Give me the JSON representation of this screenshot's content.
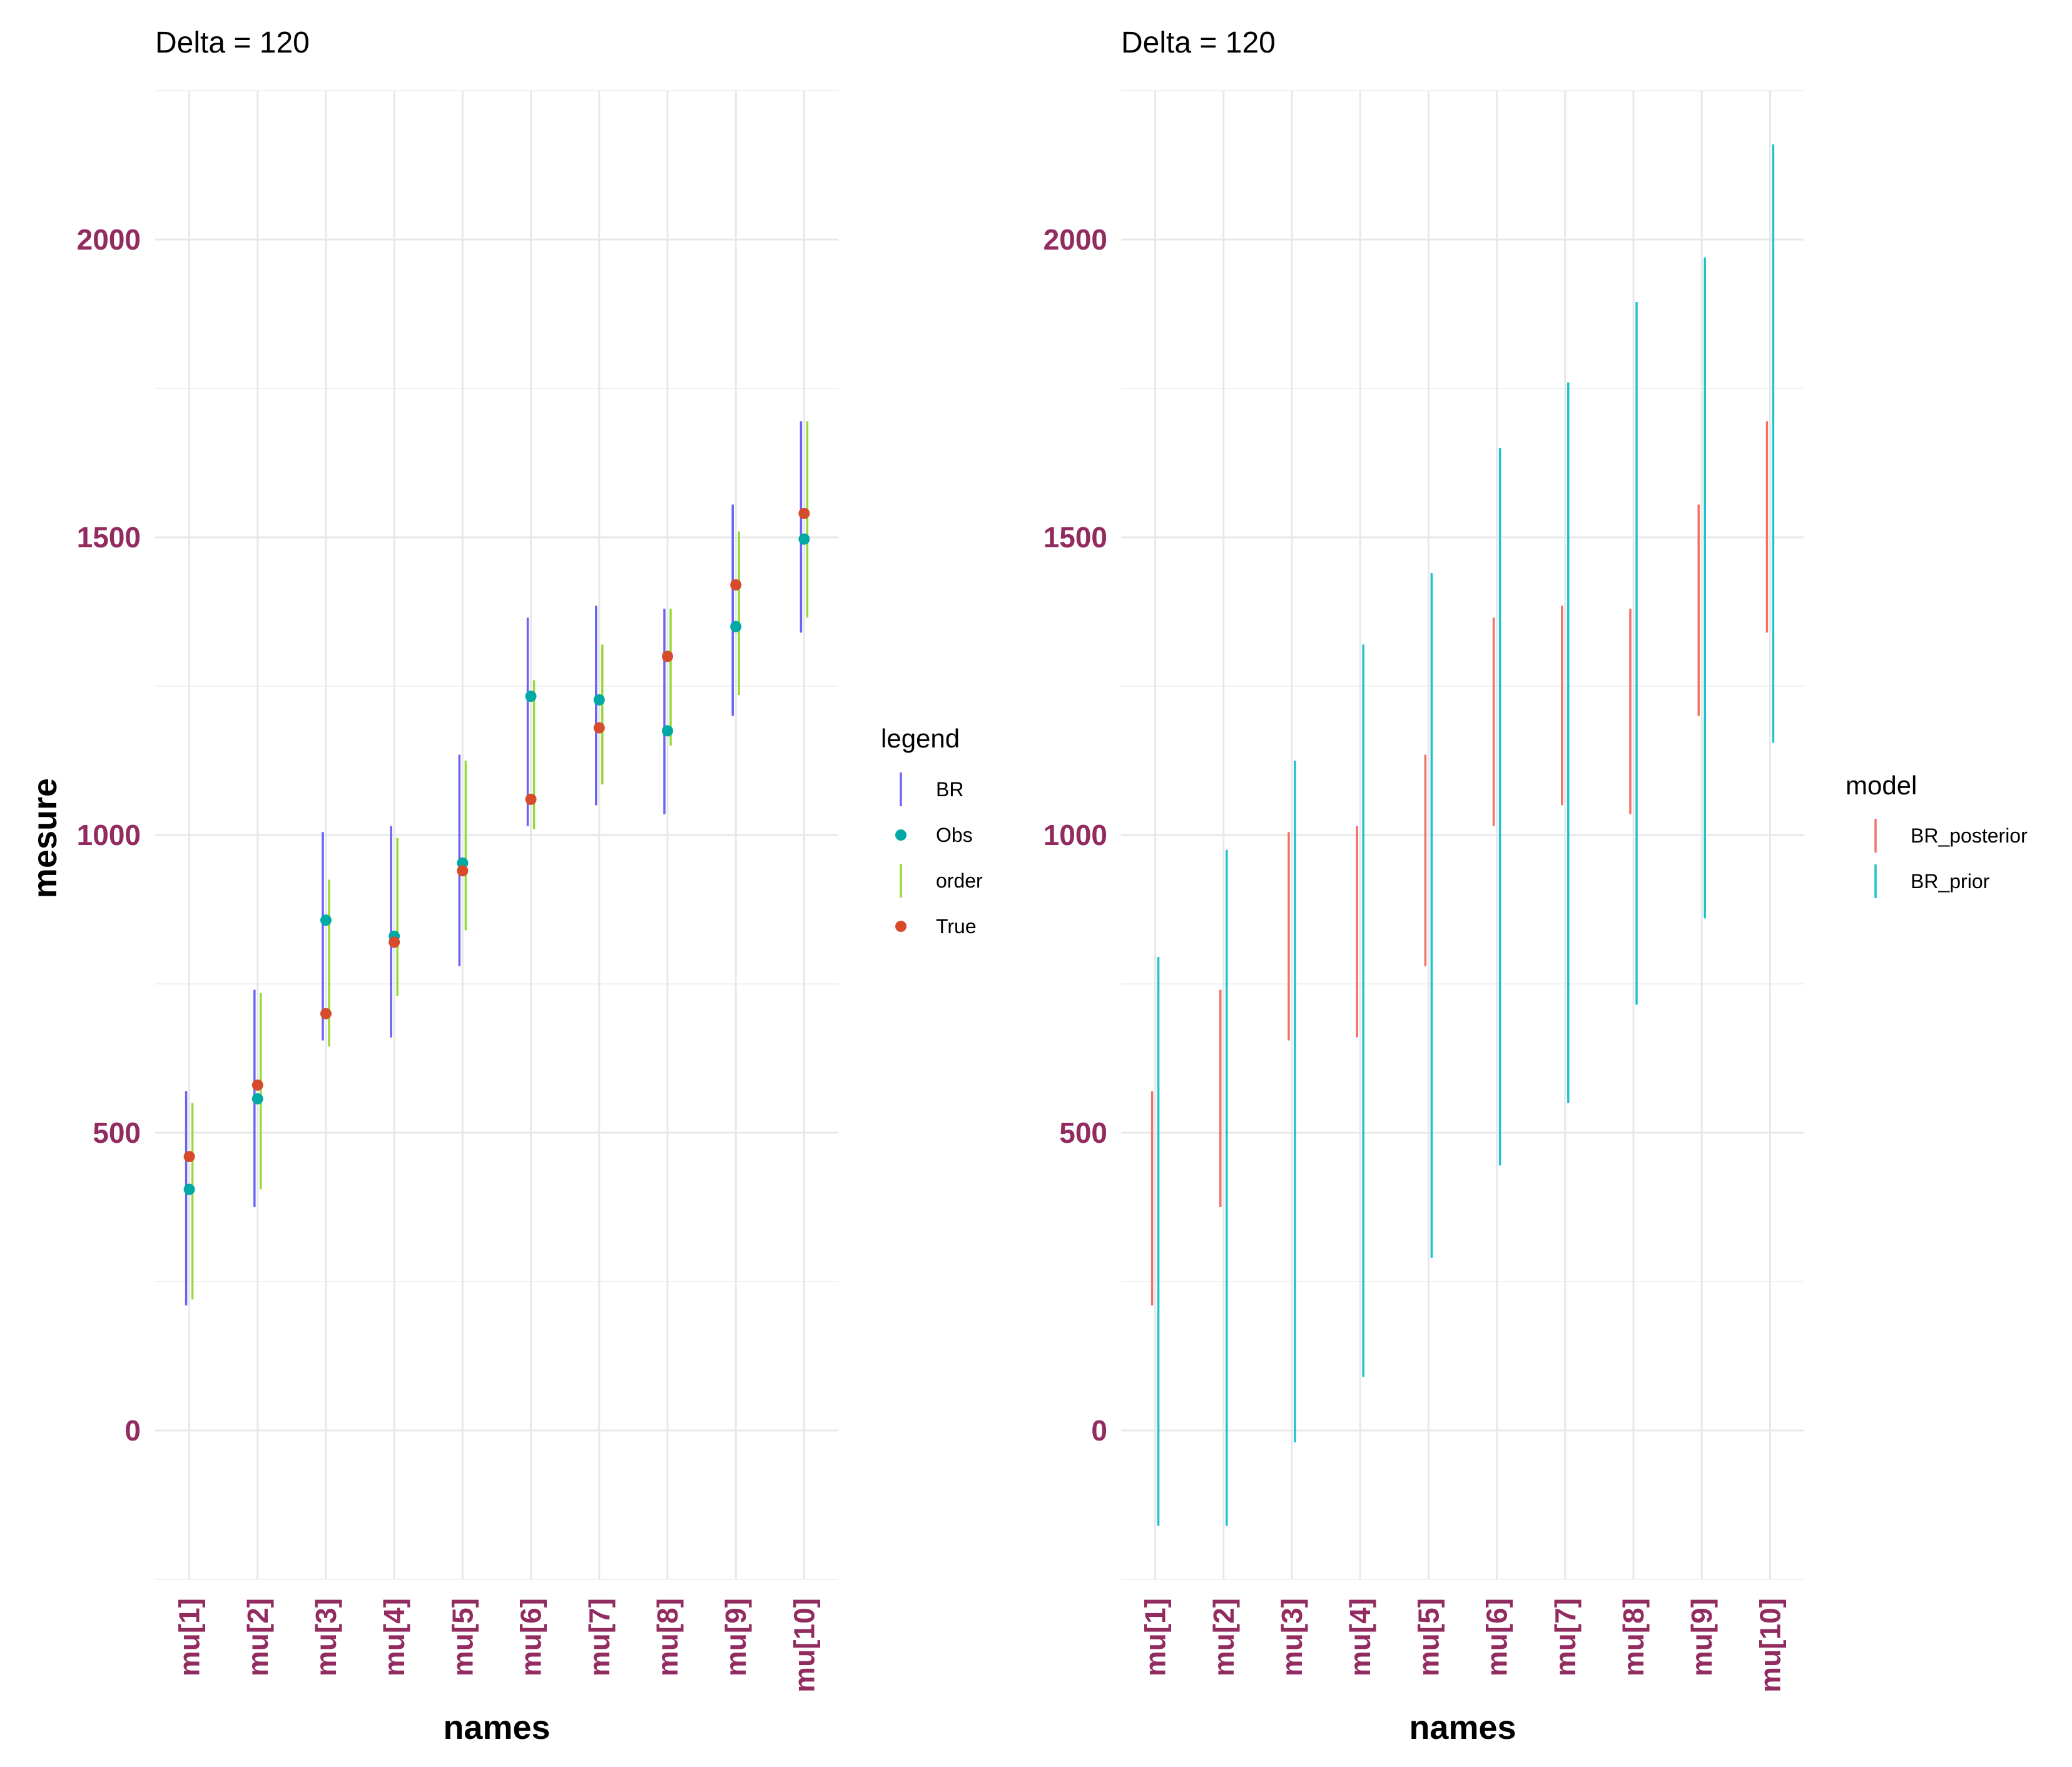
{
  "chart_data": [
    {
      "type": "errorbar",
      "title": "Delta = 120",
      "xlabel": "names",
      "ylabel": "mesure",
      "ylim": [
        -250,
        2250
      ],
      "yticks": [
        0,
        500,
        1000,
        1500,
        2000
      ],
      "categories": [
        "mu[1]",
        "mu[2]",
        "mu[3]",
        "mu[4]",
        "mu[5]",
        "mu[6]",
        "mu[7]",
        "mu[8]",
        "mu[9]",
        "mu[10]"
      ],
      "legend_title": "legend",
      "legend_position": "right",
      "grid": true,
      "series": [
        {
          "name": "BR",
          "kind": "interval",
          "color": "#6b63f5",
          "offset": "left",
          "low": [
            210,
            375,
            655,
            660,
            780,
            1015,
            1050,
            1035,
            1200,
            1340
          ],
          "high": [
            570,
            740,
            1005,
            1015,
            1135,
            1365,
            1385,
            1380,
            1555,
            1695
          ]
        },
        {
          "name": "Obs",
          "kind": "point",
          "color": "#00a9a6",
          "values": [
            405,
            557,
            857,
            830,
            953,
            1233,
            1227,
            1175,
            1350,
            1497
          ]
        },
        {
          "name": "order",
          "kind": "interval",
          "color": "#97d93a",
          "offset": "right",
          "low": [
            220,
            405,
            645,
            730,
            840,
            1010,
            1085,
            1150,
            1235,
            1365
          ],
          "high": [
            550,
            735,
            925,
            995,
            1125,
            1260,
            1320,
            1380,
            1510,
            1695
          ]
        },
        {
          "name": "True",
          "kind": "point",
          "color": "#d64b2b",
          "values": [
            460,
            580,
            700,
            820,
            940,
            1060,
            1180,
            1300,
            1420,
            1540
          ]
        }
      ]
    },
    {
      "type": "errorbar",
      "title": "Delta = 120",
      "xlabel": "names",
      "ylabel": "",
      "ylim": [
        -250,
        2250
      ],
      "yticks": [
        0,
        500,
        1000,
        1500,
        2000
      ],
      "categories": [
        "mu[1]",
        "mu[2]",
        "mu[3]",
        "mu[4]",
        "mu[5]",
        "mu[6]",
        "mu[7]",
        "mu[8]",
        "mu[9]",
        "mu[10]"
      ],
      "legend_title": "model",
      "legend_position": "right",
      "grid": true,
      "series": [
        {
          "name": "BR_posterior",
          "kind": "interval",
          "color": "#f27168",
          "offset": "left",
          "low": [
            210,
            375,
            655,
            660,
            780,
            1015,
            1050,
            1035,
            1200,
            1340
          ],
          "high": [
            570,
            740,
            1005,
            1015,
            1135,
            1365,
            1385,
            1380,
            1555,
            1695
          ]
        },
        {
          "name": "BR_prior",
          "kind": "interval",
          "color": "#1ec2cf",
          "offset": "right",
          "low": [
            -160,
            -160,
            -20,
            90,
            290,
            445,
            550,
            715,
            860,
            1155
          ],
          "high": [
            795,
            975,
            1125,
            1320,
            1440,
            1650,
            1760,
            1895,
            1970,
            2160
          ]
        }
      ]
    }
  ]
}
